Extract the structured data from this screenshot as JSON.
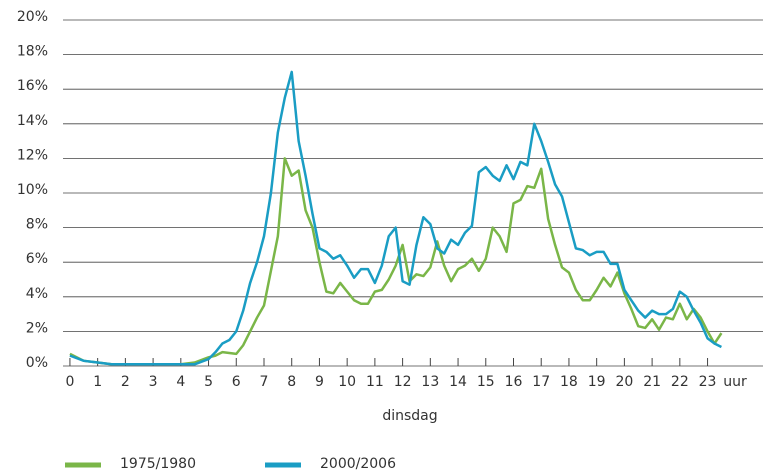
{
  "chart_data": {
    "type": "line",
    "x_label": "dinsdag",
    "x_unit": "uur",
    "x": [
      0,
      0.5,
      1,
      1.5,
      2,
      2.5,
      3,
      3.5,
      4,
      4.5,
      5,
      5.25,
      5.5,
      5.75,
      6,
      6.25,
      6.5,
      6.75,
      7,
      7.25,
      7.5,
      7.75,
      8,
      8.25,
      8.5,
      8.75,
      9,
      9.25,
      9.5,
      9.75,
      10,
      10.25,
      10.5,
      10.75,
      11,
      11.25,
      11.5,
      11.75,
      12,
      12.25,
      12.5,
      12.75,
      13,
      13.25,
      13.5,
      13.75,
      14,
      14.25,
      14.5,
      14.75,
      15,
      15.25,
      15.5,
      15.75,
      16,
      16.25,
      16.5,
      16.75,
      17,
      17.25,
      17.5,
      17.75,
      18,
      18.25,
      18.5,
      18.75,
      19,
      19.25,
      19.5,
      19.75,
      20,
      20.25,
      20.5,
      20.75,
      21,
      21.25,
      21.5,
      21.75,
      22,
      22.25,
      22.5,
      22.75,
      23,
      23.25,
      23.5
    ],
    "series": [
      {
        "name": "1975/1980",
        "color": "#7ab648",
        "values": [
          0.7,
          0.3,
          0.2,
          0.1,
          0.1,
          0.1,
          0.1,
          0.1,
          0.1,
          0.2,
          0.5,
          0.6,
          0.8,
          0.75,
          0.7,
          1.2,
          2,
          2.8,
          3.5,
          5.5,
          7.5,
          12,
          11,
          11.3,
          9,
          8,
          6,
          4.3,
          4.2,
          4.8,
          4.3,
          3.8,
          3.6,
          3.6,
          4.3,
          4.4,
          5,
          5.8,
          7,
          4.9,
          5.3,
          5.2,
          5.7,
          7.2,
          5.8,
          4.9,
          5.6,
          5.8,
          6.2,
          5.5,
          6.2,
          8,
          7.5,
          6.6,
          9.4,
          9.6,
          10.4,
          10.3,
          11.4,
          8.5,
          7,
          5.7,
          5.4,
          4.4,
          3.8,
          3.8,
          4.4,
          5.1,
          4.6,
          5.4,
          4.2,
          3.3,
          2.3,
          2.2,
          2.7,
          2.1,
          2.8,
          2.7,
          3.6,
          2.7,
          3.3,
          2.8,
          2,
          1.3,
          1.9
        ]
      },
      {
        "name": "2000/2006",
        "color": "#1a9dc4",
        "values": [
          0.6,
          0.3,
          0.2,
          0.1,
          0.1,
          0.1,
          0.1,
          0.1,
          0.1,
          0.1,
          0.4,
          0.8,
          1.3,
          1.5,
          2,
          3.2,
          4.8,
          6,
          7.5,
          10,
          13.5,
          15.5,
          17,
          13,
          11,
          8.8,
          6.8,
          6.6,
          6.2,
          6.4,
          5.8,
          5.1,
          5.6,
          5.6,
          4.8,
          5.8,
          7.5,
          8,
          4.9,
          4.7,
          7,
          8.6,
          8.2,
          6.8,
          6.5,
          7.3,
          7,
          7.7,
          8.1,
          11.2,
          11.5,
          11,
          10.7,
          11.6,
          10.8,
          11.8,
          11.6,
          14,
          13,
          11.8,
          10.5,
          9.8,
          8.3,
          6.8,
          6.7,
          6.4,
          6.6,
          6.6,
          5.9,
          5.9,
          4.4,
          3.8,
          3.2,
          2.8,
          3.2,
          3,
          3,
          3.3,
          4.3,
          4,
          3.2,
          2.5,
          1.6,
          1.3,
          1.1
        ]
      }
    ],
    "xlim": [
      -0.25,
      25
    ],
    "xticks": [
      0,
      1,
      2,
      3,
      4,
      5,
      6,
      7,
      8,
      9,
      10,
      11,
      12,
      13,
      14,
      15,
      16,
      17,
      18,
      19,
      20,
      21,
      22,
      23
    ],
    "ylim": [
      0,
      20
    ],
    "yticks": [
      {
        "value": 0,
        "label": "0%"
      },
      {
        "value": 2,
        "label": "2%"
      },
      {
        "value": 4,
        "label": "4%"
      },
      {
        "value": 6,
        "label": "6%"
      },
      {
        "value": 8,
        "label": "8%"
      },
      {
        "value": 10,
        "label": "10%"
      },
      {
        "value": 12,
        "label": "12%"
      },
      {
        "value": 14,
        "label": "14%"
      },
      {
        "value": 16,
        "label": "16%"
      },
      {
        "value": 18,
        "label": "18%"
      },
      {
        "value": 20,
        "label": "20%"
      }
    ],
    "grid": true
  }
}
